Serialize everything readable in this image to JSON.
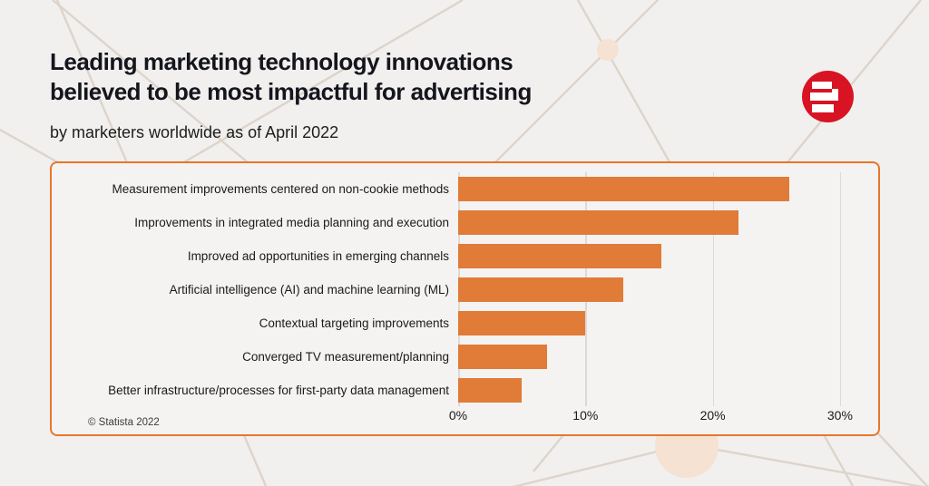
{
  "page": {
    "title_lines": [
      "Leading marketing technology innovations",
      "believed to be most impactful for advertising"
    ],
    "subtitle": "by marketers worldwide as of April 2022",
    "copyright": "© Statista 2022"
  },
  "branding": {
    "logo": "statista-logo",
    "logo_color": "#d81323"
  },
  "colors": {
    "page_bg": "#f1f0ee",
    "card_bg": "#f4f3f1",
    "card_border": "#e8762c",
    "bar": "#e17b38",
    "gridline": "#dbdad8",
    "title_text": "#15151e",
    "body_text": "#1d1d1d",
    "logo_red": "#d81323",
    "line": "#ddd4cb",
    "node_fill": "#f6e2d2"
  },
  "chart_data": {
    "type": "bar",
    "orientation": "horizontal",
    "title": "Leading marketing technology innovations believed to be most impactful for advertising",
    "subtitle": "by marketers worldwide as of April 2022",
    "categories": [
      "Measurement improvements centered on non-cookie methods",
      "Improvements in integrated media planning and execution",
      "Improved ad opportunities in emerging channels",
      "Artificial intelligence (AI) and machine learning (ML)",
      "Contextual targeting improvements",
      "Converged TV measurement/planning",
      "Better infrastructure/processes for first-party data management"
    ],
    "values": [
      26,
      22,
      16,
      13,
      10,
      7,
      5
    ],
    "unit": "%",
    "x_ticks": [
      "0%",
      "10%",
      "20%",
      "30%"
    ],
    "x_tick_values": [
      0,
      10,
      20,
      30
    ],
    "xlim": [
      0,
      33
    ],
    "grid": true,
    "legend": false,
    "bar_color": "#e17b38",
    "source": "© Statista 2022"
  }
}
